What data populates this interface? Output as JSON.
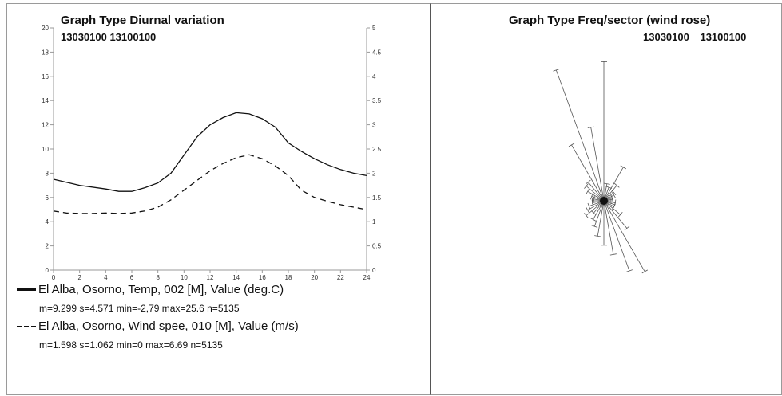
{
  "left_panel": {
    "title": "Graph Type Diurnal variation",
    "period": "13030100  13100100"
  },
  "right_panel": {
    "title": "Graph Type Freq/sector (wind rose)",
    "period_start": "13030100",
    "period_end": "13100100"
  },
  "legend": [
    {
      "style": "solid",
      "label": "El Alba, Osorno, Temp, 002 [M], Value (deg.C)",
      "stats": "m=9.299 s=4.571 min=-2,79 max=25.6 n=5135"
    },
    {
      "style": "dashed",
      "label": "El Alba, Osorno, Wind spee, 010 [M], Value (m/s)",
      "stats": "m=1.598 s=1.062 min=0 max=6.69 n=5135"
    }
  ],
  "chart_data": [
    {
      "type": "line",
      "x": [
        0,
        2,
        4,
        6,
        7,
        8,
        10,
        12,
        13,
        14,
        15,
        16,
        18,
        20,
        22,
        24
      ],
      "xticks": [
        0,
        2,
        4,
        6,
        8,
        10,
        12,
        14,
        16,
        18,
        20,
        22,
        24
      ],
      "xlim": [
        0,
        24
      ],
      "ylim_left": [
        0,
        20
      ],
      "yticks_left": [
        0,
        2,
        4,
        6,
        8,
        10,
        12,
        14,
        16,
        18,
        20
      ],
      "ylim_right": [
        0,
        5
      ],
      "yticks_right": [
        "0",
        "0.5",
        "1",
        "1.5",
        "2",
        "2.5",
        "3",
        "3.5",
        "4",
        "4.5",
        "5"
      ],
      "series": [
        {
          "name": "El Alba, Osorno, Temp, 002 [M], Value (deg.C)",
          "axis": "left",
          "style": "solid",
          "x": [
            0,
            2,
            4,
            5,
            6,
            7,
            8,
            9,
            10,
            11,
            12,
            13,
            14,
            15,
            16,
            17,
            18,
            19,
            20,
            21,
            22,
            23,
            24
          ],
          "values": [
            7.5,
            7.0,
            6.7,
            6.5,
            6.5,
            6.8,
            7.2,
            8.0,
            9.5,
            11.0,
            12.0,
            12.6,
            13.0,
            12.9,
            12.5,
            11.8,
            10.5,
            9.8,
            9.2,
            8.7,
            8.3,
            8.0,
            7.8
          ]
        },
        {
          "name": "El Alba, Osorno, Wind spee, 010 [M], Value (m/s)",
          "axis": "right",
          "style": "dashed",
          "x": [
            0,
            1,
            2,
            3,
            4,
            5,
            6,
            7,
            8,
            9,
            10,
            11,
            12,
            13,
            14,
            15,
            16,
            17,
            18,
            19,
            20,
            21,
            22,
            23,
            24
          ],
          "values": [
            1.22,
            1.18,
            1.17,
            1.17,
            1.18,
            1.17,
            1.18,
            1.22,
            1.3,
            1.45,
            1.65,
            1.85,
            2.05,
            2.2,
            2.32,
            2.38,
            2.3,
            2.15,
            1.95,
            1.65,
            1.5,
            1.42,
            1.35,
            1.3,
            1.25
          ]
        }
      ]
    },
    {
      "type": "wind_rose",
      "sectors_deg": [
        0,
        10,
        20,
        30,
        40,
        50,
        60,
        70,
        80,
        90,
        100,
        110,
        120,
        130,
        140,
        150,
        160,
        170,
        180,
        190,
        200,
        210,
        220,
        230,
        240,
        250,
        260,
        270,
        280,
        290,
        300,
        310,
        320,
        330,
        340,
        350
      ],
      "relative_frequency": [
        0.97,
        0.12,
        0.1,
        0.27,
        0.14,
        0.09,
        0.08,
        0.06,
        0.06,
        0.05,
        0.08,
        0.08,
        0.08,
        0.15,
        0.25,
        0.57,
        0.52,
        0.38,
        0.31,
        0.25,
        0.19,
        0.15,
        0.11,
        0.16,
        0.13,
        0.11,
        0.08,
        0.08,
        0.07,
        0.09,
        0.13,
        0.16,
        0.17,
        0.45,
        0.97,
        0.52
      ]
    }
  ]
}
